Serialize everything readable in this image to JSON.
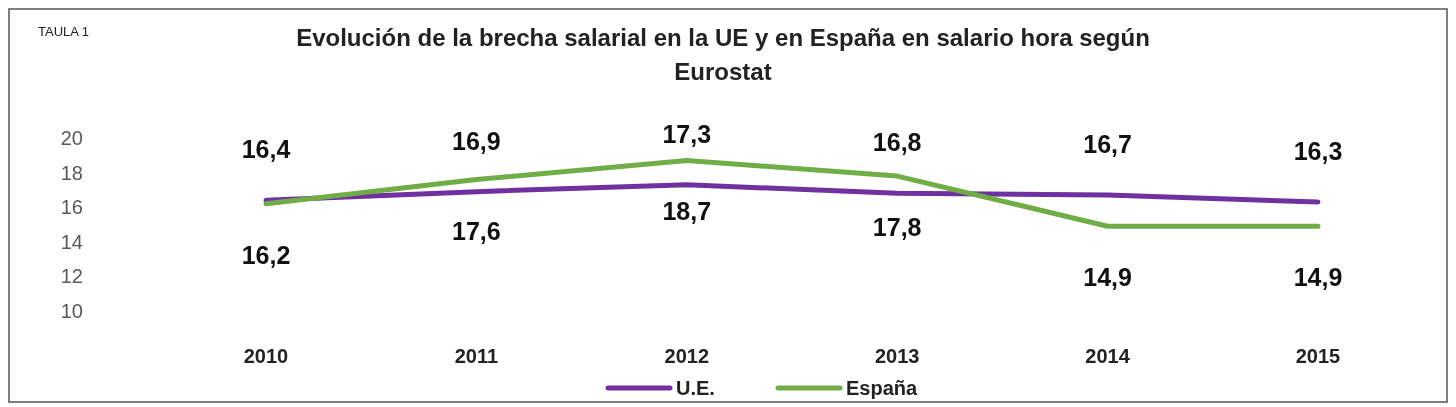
{
  "chart_data": {
    "type": "line",
    "title": "Evolución de la brecha salarial en la UE y en España en salario hora según Eurostat",
    "annotations": [
      "TAULA 1"
    ],
    "categories": [
      "2010",
      "2011",
      "2012",
      "2013",
      "2014",
      "2015"
    ],
    "series": [
      {
        "name": "U.E.",
        "color": "#7030a0",
        "values": [
          16.4,
          16.9,
          17.3,
          16.8,
          16.7,
          16.3
        ],
        "value_labels": [
          "16,4",
          "16,9",
          "17,3",
          "16,8",
          "16,7",
          "16,3"
        ]
      },
      {
        "name": "España",
        "color": "#70ad47",
        "values": [
          16.2,
          17.6,
          18.7,
          17.8,
          14.9,
          14.9
        ],
        "value_labels": [
          "16,2",
          "17,6",
          "18,7",
          "17,8",
          "14,9",
          "14,9"
        ]
      }
    ],
    "ylim": [
      10,
      20
    ],
    "yticks": [
      10,
      12,
      14,
      16,
      18,
      20
    ],
    "legend": "bottom",
    "grid": false,
    "line_style": "solid"
  }
}
